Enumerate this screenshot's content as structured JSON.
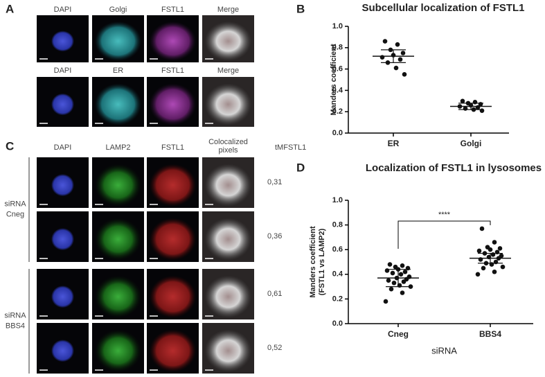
{
  "panel_labels": [
    "A",
    "B",
    "C",
    "D"
  ],
  "panel_a": {
    "row1": [
      "DAPI",
      "Golgi",
      "FSTL1",
      "Merge"
    ],
    "row2": [
      "DAPI",
      "ER",
      "FSTL1",
      "Merge"
    ]
  },
  "panel_c": {
    "columns": [
      "DAPI",
      "LAMP2",
      "FSTL1"
    ],
    "coloc_header": [
      "Colocalized",
      "pixels"
    ],
    "value_header": "tMFSTL1",
    "groups": [
      {
        "label": [
          "siRNA",
          "Cneg"
        ],
        "values": [
          "0,31",
          "0,36"
        ]
      },
      {
        "label": [
          "siRNA",
          "BBS4"
        ],
        "values": [
          "0,61",
          "0,52"
        ]
      }
    ]
  },
  "chart_data": [
    {
      "type": "dot",
      "title": "Subcellular localization of  FSTL1",
      "ylabel": [
        "Manders coefficient"
      ],
      "categories": [
        "ER",
        "Golgi"
      ],
      "values": [
        [
          0.86,
          0.83,
          0.78,
          0.75,
          0.73,
          0.71,
          0.69,
          0.66,
          0.61,
          0.55
        ],
        [
          0.3,
          0.29,
          0.28,
          0.27,
          0.26,
          0.25,
          0.24,
          0.23,
          0.22,
          0.21
        ]
      ],
      "means": [
        0.72,
        0.25
      ],
      "errors": [
        0.06,
        0.03
      ],
      "color": "#111111",
      "ylim": [
        0,
        1
      ],
      "yticks": [
        {
          "value": 0,
          "label": "0.0"
        },
        {
          "value": 0.2,
          "label": "0.2"
        },
        {
          "value": 0.4,
          "label": "0.4"
        },
        {
          "value": 0.6,
          "label": "0.6"
        },
        {
          "value": 0.8,
          "label": "0.8"
        },
        {
          "value": 1,
          "label": "1.0"
        }
      ]
    },
    {
      "type": "dot",
      "title": "Localization of FSTL1 in lysosomes",
      "ylabel": [
        "Manders coefficient",
        "(FSTL1 vs LAMP2)"
      ],
      "xlabel": "siRNA",
      "annotation": "****",
      "categories": [
        "Cneg",
        "BBS4"
      ],
      "values": [
        [
          0.48,
          0.47,
          0.46,
          0.45,
          0.44,
          0.43,
          0.42,
          0.41,
          0.4,
          0.38,
          0.37,
          0.36,
          0.35,
          0.34,
          0.33,
          0.31,
          0.3,
          0.28,
          0.25,
          0.18
        ],
        [
          0.77,
          0.66,
          0.62,
          0.61,
          0.6,
          0.59,
          0.58,
          0.57,
          0.56,
          0.55,
          0.54,
          0.53,
          0.52,
          0.5,
          0.49,
          0.48,
          0.46,
          0.45,
          0.42,
          0.4
        ]
      ],
      "means": [
        0.37,
        0.53
      ],
      "errors": [
        0.07,
        0.04
      ],
      "color": "#111111",
      "ylim": [
        0,
        1
      ],
      "yticks": [
        {
          "value": 0,
          "label": "0.0"
        },
        {
          "value": 0.2,
          "label": "0.2"
        },
        {
          "value": 0.4,
          "label": "0.4"
        },
        {
          "value": 0.6,
          "label": "0.6"
        },
        {
          "value": 0.8,
          "label": "0.8"
        },
        {
          "value": 1,
          "label": "1.0"
        }
      ]
    }
  ]
}
